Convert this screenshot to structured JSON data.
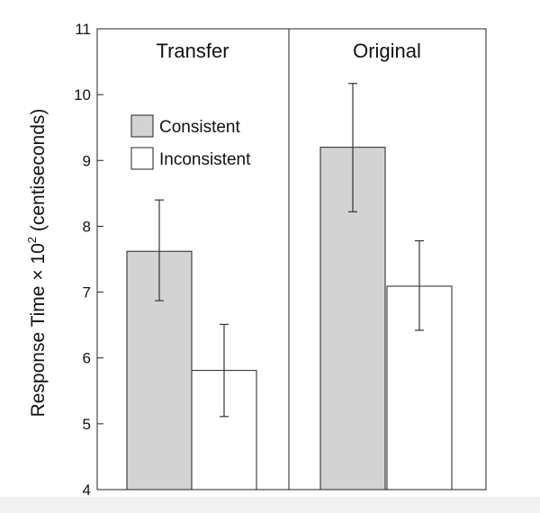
{
  "chart_data": {
    "type": "bar",
    "ylabel_prefix": "Response Time ",
    "ylabel_times": "×",
    "ylabel_base": " 10",
    "ylabel_exp": "2",
    "ylabel_suffix": " (centiseconds)",
    "ylim": [
      4,
      11
    ],
    "yticks": [
      "4",
      "5",
      "6",
      "7",
      "8",
      "9",
      "10",
      "11"
    ],
    "panels": [
      {
        "title": "Transfer",
        "bars": [
          {
            "series": "Consistent",
            "value": 7.62,
            "err_low": 6.87,
            "err_high": 8.4
          },
          {
            "series": "Inconsistent",
            "value": 5.81,
            "err_low": 5.11,
            "err_high": 6.51
          }
        ]
      },
      {
        "title": "Original",
        "bars": [
          {
            "series": "Consistent",
            "value": 9.2,
            "err_low": 8.22,
            "err_high": 10.17
          },
          {
            "series": "Inconsistent",
            "value": 7.09,
            "err_low": 6.42,
            "err_high": 7.78
          }
        ]
      }
    ],
    "legend": [
      {
        "name": "Consistent",
        "color": "#d3d3d3"
      },
      {
        "name": "Inconsistent",
        "color": "#ffffff"
      }
    ],
    "legend_placement": "upper-left of first panel",
    "grid": false
  }
}
